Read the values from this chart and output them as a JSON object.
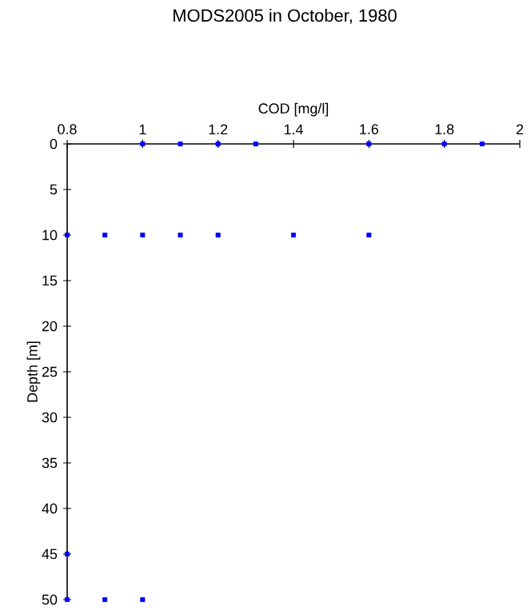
{
  "chart_data": {
    "type": "scatter",
    "title": "MODS2005 in October, 1980",
    "xlabel": "COD [mg/l]",
    "ylabel": "Depth [m]",
    "x": [
      1,
      1.1,
      1.2,
      1.3,
      1.6,
      1.8,
      1.9,
      0.8,
      0.9,
      1,
      1.1,
      1.2,
      1.4,
      1.6,
      0.8,
      0.8,
      0.9,
      1
    ],
    "values": [
      0,
      0,
      0,
      0,
      0,
      0,
      0,
      10,
      10,
      10,
      10,
      10,
      10,
      10,
      45,
      50,
      50,
      50
    ],
    "color": "#0000ff",
    "marker": "square",
    "xlim": [
      0.8,
      2
    ],
    "xticks": [
      0.8,
      1,
      1.2,
      1.4,
      1.6,
      1.8,
      2
    ],
    "ylim": [
      50,
      0
    ],
    "yticks": [
      0,
      5,
      10,
      15,
      20,
      25,
      30,
      35,
      40,
      45,
      50
    ],
    "grid": false
  }
}
